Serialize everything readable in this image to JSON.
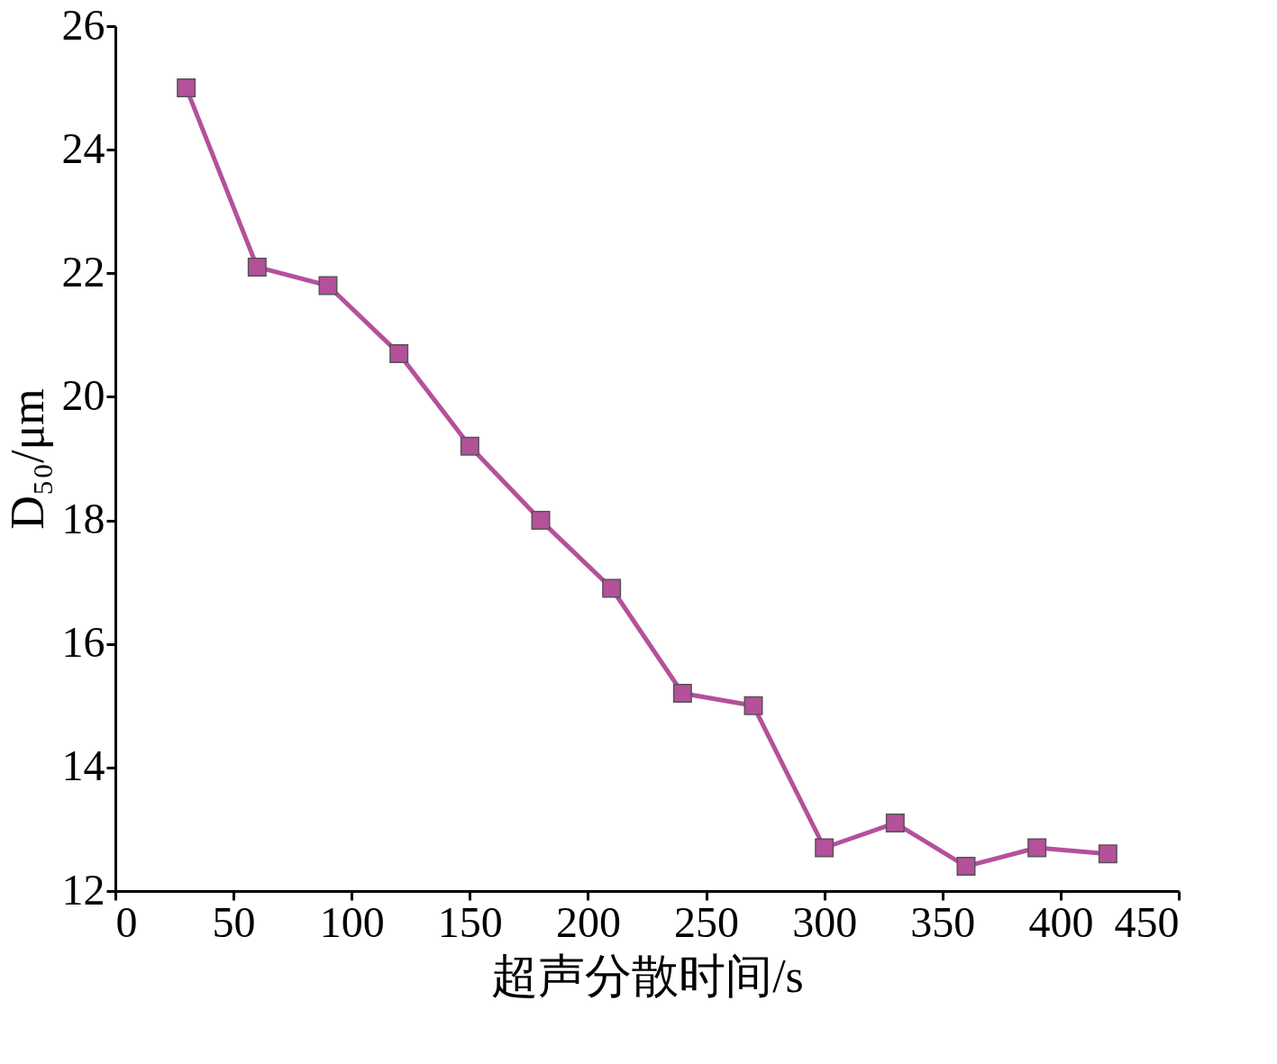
{
  "chart_data": {
    "type": "line",
    "xlabel": "超声分散时间/s",
    "ylabel": "D₅₀/μm",
    "x": [
      30,
      60,
      90,
      120,
      150,
      180,
      210,
      240,
      270,
      300,
      330,
      360,
      390,
      420
    ],
    "series": [
      {
        "color": "#b5509b",
        "values": [
          25.0,
          22.1,
          21.8,
          20.7,
          19.2,
          18.0,
          16.9,
          15.2,
          15.0,
          12.7,
          13.1,
          12.4,
          12.7,
          12.6
        ]
      }
    ],
    "xlim": [
      0,
      450
    ],
    "xticks": [
      0,
      50,
      100,
      150,
      200,
      250,
      300,
      350,
      400,
      450
    ],
    "ylim": [
      12,
      26
    ],
    "yticks": [
      12,
      14,
      16,
      18,
      20,
      22,
      24,
      26
    ],
    "grid": false,
    "marker": "square",
    "line_style": "solid"
  }
}
